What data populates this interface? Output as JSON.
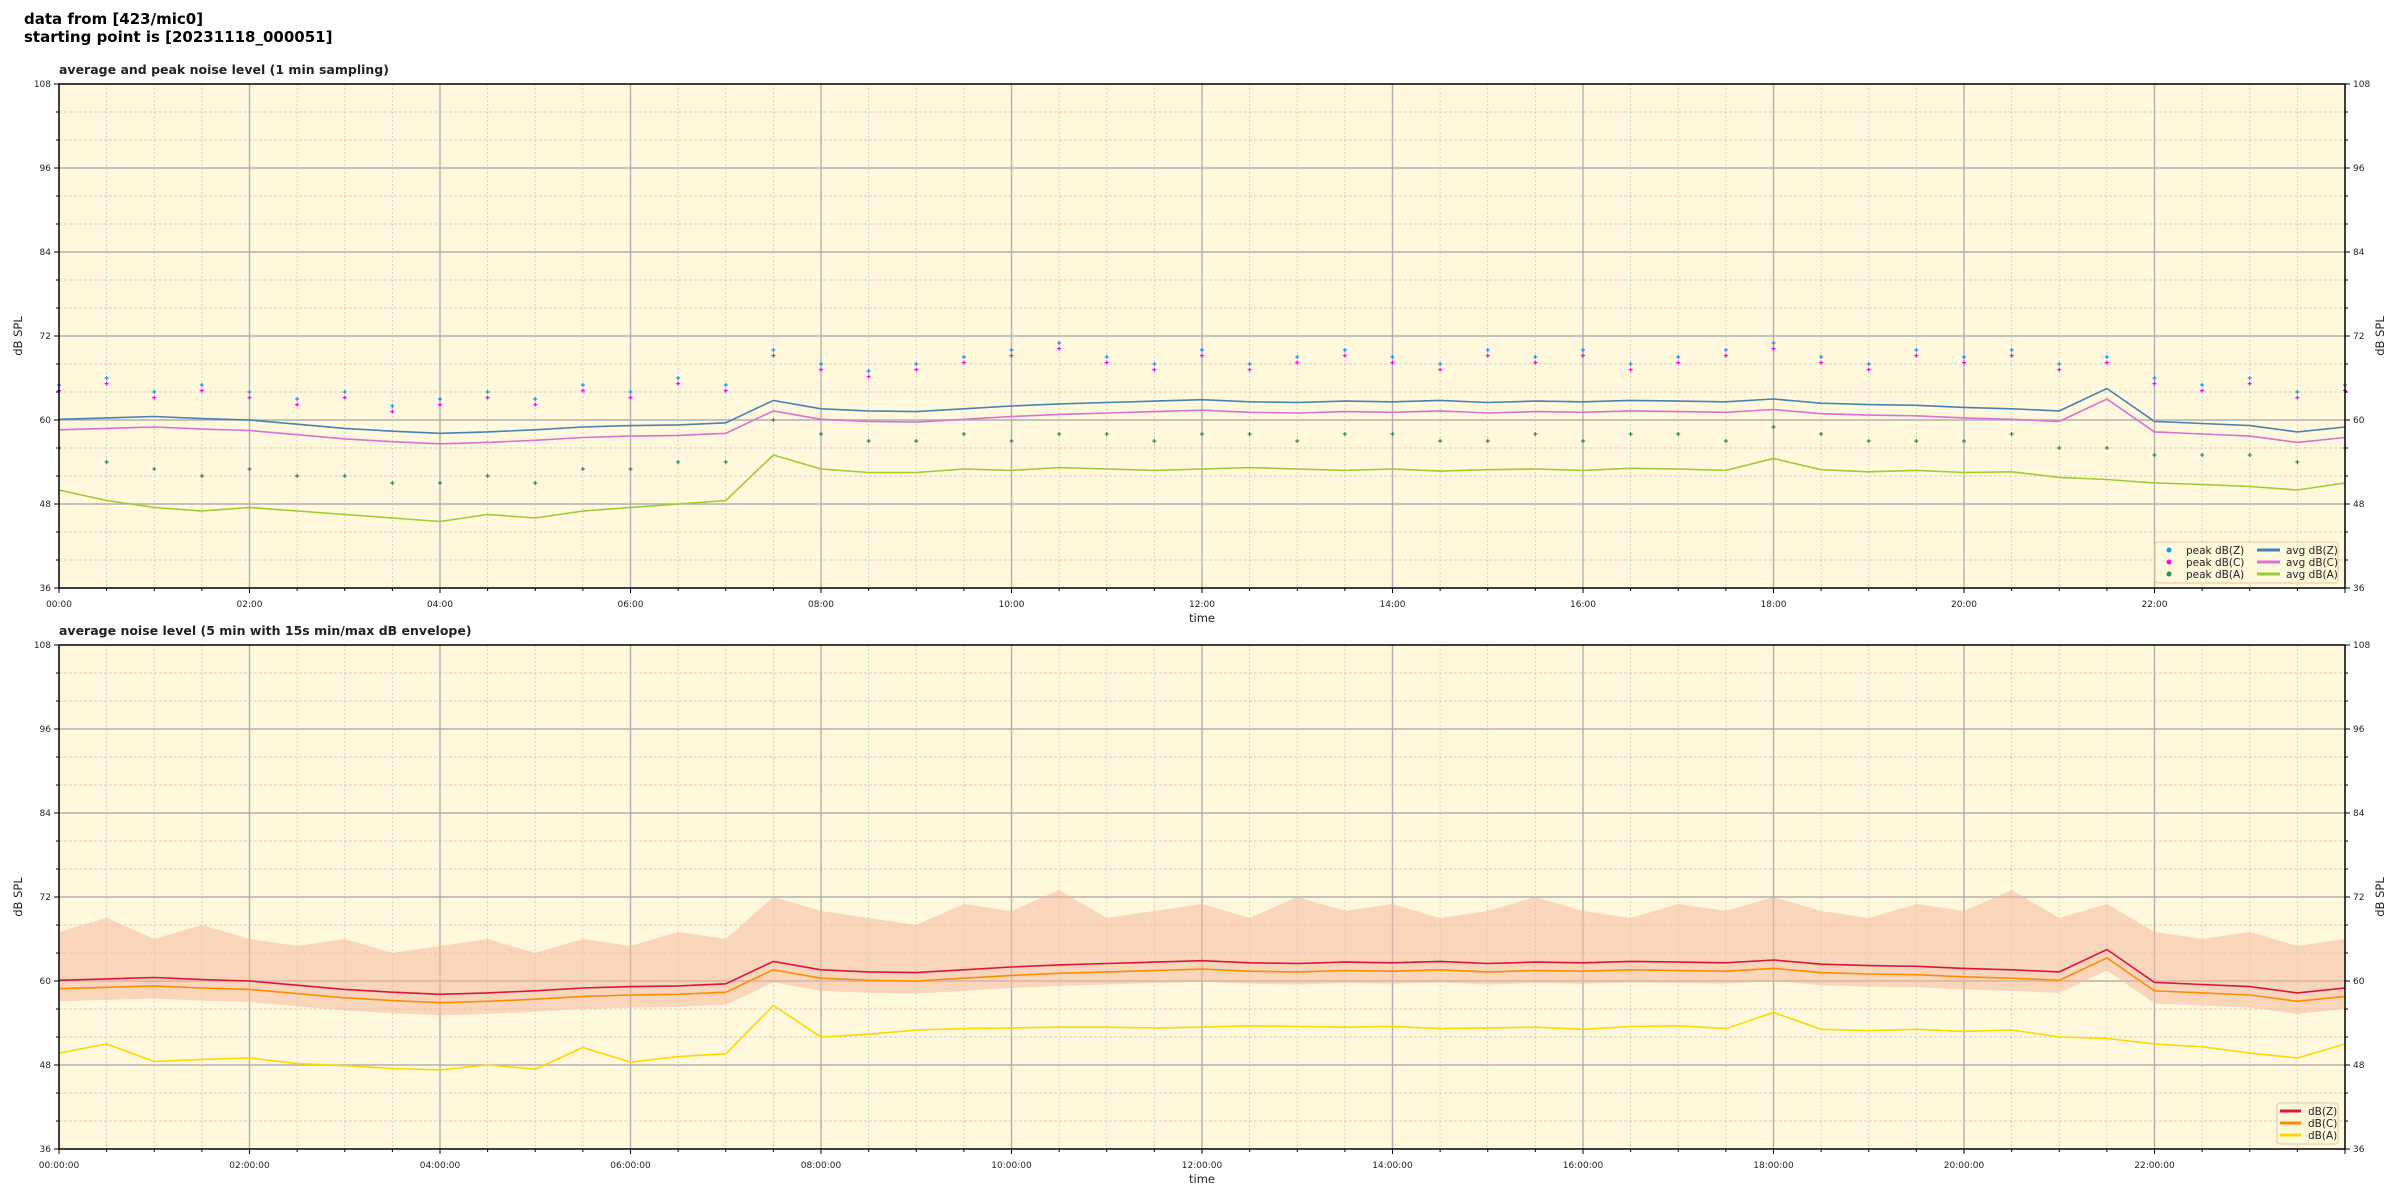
{
  "suptitle": {
    "line1": "data from [423/mic0]",
    "line2": "starting point is [20231118_000051]"
  },
  "chart_data": [
    {
      "type": "line",
      "title": "average and peak noise level (1 min sampling)",
      "xlabel": "time",
      "ylabel": "dB SPL",
      "ylim": [
        36,
        108
      ],
      "yticks": [
        "36",
        "48",
        "60",
        "72",
        "84",
        "96",
        "108"
      ],
      "xlim": [
        "00:00",
        "24:00"
      ],
      "xticks": [
        "00:00",
        "02:00",
        "04:00",
        "06:00",
        "08:00",
        "10:00",
        "12:00",
        "14:00",
        "16:00",
        "18:00",
        "20:00",
        "22:00"
      ],
      "grid": true,
      "background": "#fff8dc",
      "legend_placement": "lower-right",
      "x": [
        "00:00",
        "00:30",
        "01:00",
        "01:30",
        "02:00",
        "02:30",
        "03:00",
        "03:30",
        "04:00",
        "04:30",
        "05:00",
        "05:30",
        "06:00",
        "06:30",
        "07:00",
        "07:30",
        "08:00",
        "08:30",
        "09:00",
        "09:30",
        "10:00",
        "10:30",
        "11:00",
        "11:30",
        "12:00",
        "12:30",
        "13:00",
        "13:30",
        "14:00",
        "14:30",
        "15:00",
        "15:30",
        "16:00",
        "16:30",
        "17:00",
        "17:30",
        "18:00",
        "18:30",
        "19:00",
        "19:30",
        "20:00",
        "20:30",
        "21:00",
        "21:30",
        "22:00",
        "22:30",
        "23:00",
        "23:30",
        "24:00"
      ],
      "series": [
        {
          "name": "peak dB(Z)",
          "kind": "scatter",
          "color": "#1e90ff",
          "values": [
            65,
            66,
            64,
            65,
            64,
            63,
            64,
            62,
            63,
            64,
            63,
            65,
            64,
            66,
            65,
            70,
            68,
            67,
            68,
            69,
            70,
            71,
            69,
            68,
            70,
            68,
            69,
            70,
            69,
            68,
            70,
            69,
            70,
            68,
            69,
            70,
            71,
            69,
            68,
            70,
            69,
            70,
            68,
            69,
            66,
            65,
            66,
            64,
            65
          ]
        },
        {
          "name": "peak dB(C)",
          "kind": "scatter",
          "color": "#ff00ff",
          "values": [
            64.2,
            65.2,
            63.2,
            64.2,
            63.2,
            62.2,
            63.2,
            61.2,
            62.2,
            63.2,
            62.2,
            64.2,
            63.2,
            65.2,
            64.2,
            69.2,
            67.2,
            66.2,
            67.2,
            68.2,
            69.2,
            70.2,
            68.2,
            67.2,
            69.2,
            67.2,
            68.2,
            69.2,
            68.2,
            67.2,
            69.2,
            68.2,
            69.2,
            67.2,
            68.2,
            69.2,
            70.2,
            68.2,
            67.2,
            69.2,
            68.2,
            69.2,
            67.2,
            68.2,
            65.2,
            64.2,
            65.2,
            63.2,
            64.2
          ]
        },
        {
          "name": "peak dB(A)",
          "kind": "scatter",
          "color": "#2e8b57",
          "values": [
            56,
            54,
            53,
            52,
            53,
            52,
            52,
            51,
            51,
            52,
            51,
            53,
            53,
            54,
            54,
            60,
            58,
            57,
            57,
            58,
            57,
            58,
            58,
            57,
            58,
            58,
            57,
            58,
            58,
            57,
            57,
            58,
            57,
            58,
            58,
            57,
            59,
            58,
            57,
            57,
            57,
            58,
            56,
            56,
            55,
            55,
            55,
            54,
            56
          ]
        },
        {
          "name": "avg dB(Z)",
          "kind": "line",
          "color": "#4682b4",
          "values": [
            60.1,
            60.3,
            60.5,
            60.2,
            60.0,
            59.4,
            58.8,
            58.4,
            58.1,
            58.3,
            58.6,
            59.0,
            59.2,
            59.3,
            59.6,
            62.8,
            61.6,
            61.3,
            61.2,
            61.6,
            62.0,
            62.3,
            62.5,
            62.7,
            62.9,
            62.6,
            62.5,
            62.7,
            62.6,
            62.8,
            62.5,
            62.7,
            62.6,
            62.8,
            62.7,
            62.6,
            63.0,
            62.4,
            62.2,
            62.1,
            61.8,
            61.6,
            61.3,
            64.5,
            59.8,
            59.5,
            59.2,
            58.3,
            59.0
          ]
        },
        {
          "name": "avg dB(C)",
          "kind": "line",
          "color": "#da70d6",
          "values": [
            58.6,
            58.8,
            59.0,
            58.7,
            58.5,
            57.9,
            57.3,
            56.9,
            56.6,
            56.8,
            57.1,
            57.5,
            57.7,
            57.8,
            58.1,
            61.3,
            60.1,
            59.8,
            59.7,
            60.1,
            60.5,
            60.8,
            61.0,
            61.2,
            61.4,
            61.1,
            61.0,
            61.2,
            61.1,
            61.3,
            61.0,
            61.2,
            61.1,
            61.3,
            61.2,
            61.1,
            61.5,
            60.9,
            60.7,
            60.6,
            60.3,
            60.1,
            59.8,
            63.0,
            58.3,
            58.0,
            57.7,
            56.8,
            57.5
          ]
        },
        {
          "name": "avg dB(A)",
          "kind": "line",
          "color": "#9acd32",
          "values": [
            50,
            48.5,
            47.5,
            47,
            47.5,
            47,
            46.5,
            46,
            45.5,
            46.5,
            46,
            47,
            47.5,
            48,
            48.5,
            55,
            53,
            52.5,
            52.5,
            53,
            52.8,
            53.2,
            53,
            52.8,
            53,
            53.2,
            53,
            52.8,
            53,
            52.7,
            52.9,
            53,
            52.8,
            53.1,
            53,
            52.8,
            54.5,
            52.9,
            52.6,
            52.8,
            52.5,
            52.6,
            51.8,
            51.5,
            51,
            50.8,
            50.5,
            50,
            51
          ]
        }
      ]
    },
    {
      "type": "line",
      "title": "average noise level (5 min with 15s min/max dB envelope)",
      "xlabel": "time",
      "ylabel": "dB SPL",
      "ylim": [
        36,
        108
      ],
      "yticks": [
        "36",
        "48",
        "60",
        "72",
        "84",
        "96",
        "108"
      ],
      "xlim": [
        "00:00:00",
        "24:00:00"
      ],
      "xticks": [
        "00:00:00",
        "02:00:00",
        "04:00:00",
        "06:00:00",
        "08:00:00",
        "10:00:00",
        "12:00:00",
        "14:00:00",
        "16:00:00",
        "18:00:00",
        "20:00:00",
        "22:00:00"
      ],
      "grid": true,
      "background": "#fff8dc",
      "legend_placement": "lower-right",
      "x": [
        "00:00",
        "00:30",
        "01:00",
        "01:30",
        "02:00",
        "02:30",
        "03:00",
        "03:30",
        "04:00",
        "04:30",
        "05:00",
        "05:30",
        "06:00",
        "06:30",
        "07:00",
        "07:30",
        "08:00",
        "08:30",
        "09:00",
        "09:30",
        "10:00",
        "10:30",
        "11:00",
        "11:30",
        "12:00",
        "12:30",
        "13:00",
        "13:30",
        "14:00",
        "14:30",
        "15:00",
        "15:30",
        "16:00",
        "16:30",
        "17:00",
        "17:30",
        "18:00",
        "18:30",
        "19:00",
        "19:30",
        "20:00",
        "20:30",
        "21:00",
        "21:30",
        "22:00",
        "22:30",
        "23:00",
        "23:30",
        "24:00"
      ],
      "envelope": {
        "color": "#f4b8a0",
        "max": [
          67,
          69,
          66,
          68,
          66,
          65,
          66,
          64,
          65,
          66,
          64,
          66,
          65,
          67,
          66,
          72,
          70,
          69,
          68,
          71,
          70,
          73,
          69,
          70,
          71,
          69,
          72,
          70,
          71,
          69,
          70,
          72,
          70,
          69,
          71,
          70,
          72,
          70,
          69,
          71,
          70,
          73,
          69,
          71,
          67,
          66,
          67,
          65,
          66
        ],
        "min": [
          57.1,
          57.3,
          57.5,
          57.2,
          57.0,
          56.4,
          55.8,
          55.4,
          55.1,
          55.3,
          55.6,
          56.0,
          56.2,
          56.3,
          56.6,
          59.8,
          58.6,
          58.3,
          58.2,
          58.6,
          59.0,
          59.3,
          59.5,
          59.7,
          59.9,
          59.6,
          59.5,
          59.7,
          59.6,
          59.8,
          59.5,
          59.7,
          59.6,
          59.8,
          59.7,
          59.6,
          60.0,
          59.4,
          59.2,
          59.1,
          58.8,
          58.6,
          58.3,
          61.5,
          56.8,
          56.5,
          56.2,
          55.3,
          56.0
        ]
      },
      "series": [
        {
          "name": "dB(Z)",
          "kind": "line",
          "color": "#dc143c",
          "values": [
            60.1,
            60.3,
            60.5,
            60.2,
            60.0,
            59.4,
            58.8,
            58.4,
            58.1,
            58.3,
            58.6,
            59.0,
            59.2,
            59.3,
            59.6,
            62.8,
            61.6,
            61.3,
            61.2,
            61.6,
            62.0,
            62.3,
            62.5,
            62.7,
            62.9,
            62.6,
            62.5,
            62.7,
            62.6,
            62.8,
            62.5,
            62.7,
            62.6,
            62.8,
            62.7,
            62.6,
            63.0,
            62.4,
            62.2,
            62.1,
            61.8,
            61.6,
            61.3,
            64.5,
            59.8,
            59.5,
            59.2,
            58.3,
            59.0
          ]
        },
        {
          "name": "dB(C)",
          "kind": "line",
          "color": "#ff8c00",
          "values": [
            58.9,
            59.1,
            59.3,
            59.0,
            58.8,
            58.2,
            57.6,
            57.2,
            56.9,
            57.1,
            57.4,
            57.8,
            58.0,
            58.1,
            58.4,
            61.6,
            60.4,
            60.1,
            60.0,
            60.4,
            60.8,
            61.1,
            61.3,
            61.5,
            61.7,
            61.4,
            61.3,
            61.5,
            61.4,
            61.6,
            61.3,
            61.5,
            61.4,
            61.6,
            61.5,
            61.4,
            61.8,
            61.2,
            61.0,
            60.9,
            60.6,
            60.4,
            60.1,
            63.3,
            58.6,
            58.3,
            58.0,
            57.1,
            57.8
          ]
        },
        {
          "name": "dB(A)",
          "kind": "line",
          "color": "#ffd700",
          "values": [
            49.7,
            51.0,
            48.5,
            48.8,
            49.0,
            48.2,
            47.9,
            47.5,
            47.3,
            48.0,
            47.4,
            50.5,
            48.4,
            49.2,
            49.6,
            56.5,
            52.0,
            52.4,
            53.0,
            53.2,
            53.3,
            53.4,
            53.4,
            53.3,
            53.4,
            53.6,
            53.5,
            53.4,
            53.5,
            53.2,
            53.3,
            53.4,
            53.1,
            53.5,
            53.6,
            53.2,
            55.5,
            53.1,
            52.9,
            53.1,
            52.8,
            53.0,
            52.0,
            51.8,
            51.0,
            50.6,
            49.7,
            49.0,
            51.0
          ]
        }
      ]
    }
  ]
}
